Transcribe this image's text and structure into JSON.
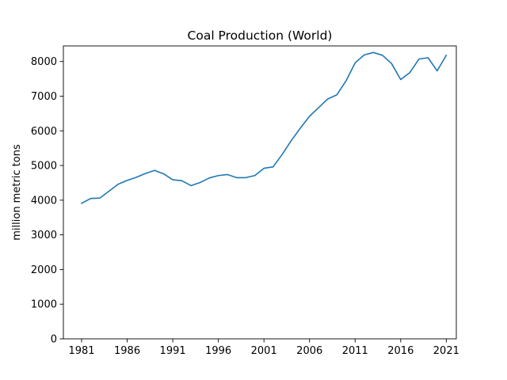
{
  "chart_data": {
    "type": "line",
    "title": "Coal Production (World)",
    "xlabel": "",
    "ylabel": "million metric tons",
    "xlim": [
      1979,
      2022.1
    ],
    "ylim": [
      0,
      8450
    ],
    "xticks": [
      1981,
      1986,
      1991,
      1996,
      2001,
      2006,
      2011,
      2016,
      2021
    ],
    "yticks": [
      0,
      1000,
      2000,
      3000,
      4000,
      5000,
      6000,
      7000,
      8000
    ],
    "grid": false,
    "series": [
      {
        "color": "#1f77b4",
        "x": [
          1981,
          1982,
          1983,
          1984,
          1985,
          1986,
          1987,
          1988,
          1989,
          1990,
          1991,
          1992,
          1993,
          1994,
          1995,
          1996,
          1997,
          1998,
          1999,
          2000,
          2001,
          2002,
          2003,
          2004,
          2005,
          2006,
          2007,
          2008,
          2009,
          2010,
          2011,
          2012,
          2013,
          2014,
          2015,
          2016,
          2017,
          2018,
          2019,
          2020,
          2021
        ],
        "y": [
          3910,
          4050,
          4060,
          4260,
          4460,
          4570,
          4660,
          4770,
          4860,
          4760,
          4590,
          4560,
          4420,
          4510,
          4640,
          4710,
          4740,
          4650,
          4650,
          4710,
          4920,
          4960,
          5320,
          5720,
          6080,
          6420,
          6670,
          6920,
          7040,
          7440,
          7960,
          8190,
          8260,
          8180,
          7940,
          7480,
          7680,
          8070,
          8110,
          7730,
          8180
        ]
      }
    ]
  }
}
